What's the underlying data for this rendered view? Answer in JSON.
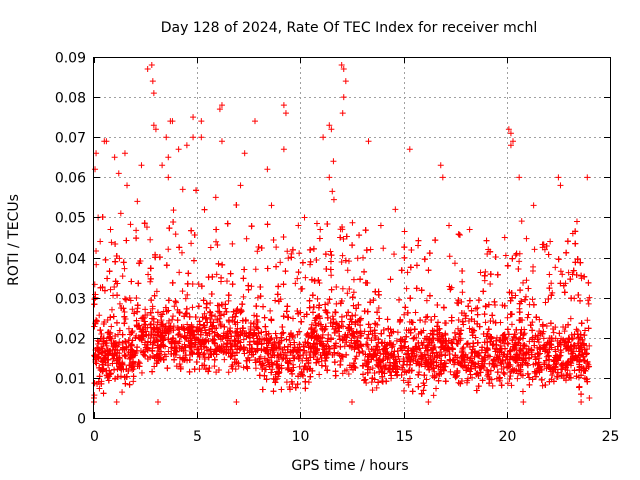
{
  "chart_data": {
    "type": "scatter",
    "title": "Day 128 of 2024, Rate Of TEC Index for receiver mchl",
    "xlabel": "GPS time / hours",
    "ylabel": "ROTI / TECUs",
    "xlim": [
      0,
      25
    ],
    "ylim": [
      0,
      0.09
    ],
    "x_ticks": [
      "0",
      "5",
      "10",
      "15",
      "20",
      "25"
    ],
    "y_ticks": [
      "0",
      "0.01",
      "0.02",
      "0.03",
      "0.04",
      "0.05",
      "0.06",
      "0.07",
      "0.08",
      "0.09"
    ],
    "grid": true,
    "marker": "plus",
    "color": "#ff0000",
    "series": [
      {
        "name": "ROTI",
        "points": [
          [
            0.05,
            0.062
          ],
          [
            0.1,
            0.066
          ],
          [
            0.2,
            0.05
          ],
          [
            0.3,
            0.044
          ],
          [
            0.5,
            0.069
          ],
          [
            0.6,
            0.069
          ],
          [
            1.0,
            0.065
          ],
          [
            1.2,
            0.061
          ],
          [
            1.5,
            0.066
          ],
          [
            1.6,
            0.058
          ],
          [
            2.3,
            0.063
          ],
          [
            2.6,
            0.087
          ],
          [
            2.8,
            0.088
          ],
          [
            2.85,
            0.084
          ],
          [
            2.9,
            0.081
          ],
          [
            2.9,
            0.073
          ],
          [
            3.0,
            0.072
          ],
          [
            3.3,
            0.063
          ],
          [
            3.5,
            0.07
          ],
          [
            3.6,
            0.065
          ],
          [
            3.6,
            0.06
          ],
          [
            3.7,
            0.074
          ],
          [
            3.8,
            0.074
          ],
          [
            4.1,
            0.067
          ],
          [
            4.5,
            0.068
          ],
          [
            4.8,
            0.07
          ],
          [
            4.8,
            0.075
          ],
          [
            5.2,
            0.07
          ],
          [
            5.2,
            0.074
          ],
          [
            6.2,
            0.069
          ],
          [
            6.1,
            0.077
          ],
          [
            6.2,
            0.078
          ],
          [
            7.8,
            0.074
          ],
          [
            7.3,
            0.066
          ],
          [
            8.4,
            0.062
          ],
          [
            9.2,
            0.078
          ],
          [
            9.3,
            0.076
          ],
          [
            9.2,
            0.067
          ],
          [
            11.1,
            0.07
          ],
          [
            11.4,
            0.073
          ],
          [
            11.5,
            0.072
          ],
          [
            11.6,
            0.064
          ],
          [
            11.4,
            0.06
          ],
          [
            12.0,
            0.088
          ],
          [
            12.1,
            0.087
          ],
          [
            12.2,
            0.084
          ],
          [
            12.1,
            0.08
          ],
          [
            12.05,
            0.076
          ],
          [
            13.3,
            0.069
          ],
          [
            15.3,
            0.067
          ],
          [
            16.8,
            0.063
          ],
          [
            16.9,
            0.06
          ],
          [
            20.1,
            0.072
          ],
          [
            20.2,
            0.071
          ],
          [
            20.3,
            0.069
          ],
          [
            20.2,
            0.068
          ],
          [
            20.6,
            0.06
          ],
          [
            22.5,
            0.06
          ],
          [
            22.6,
            0.058
          ],
          [
            23.9,
            0.06
          ],
          [
            21.3,
            0.053
          ],
          [
            23.4,
            0.049
          ],
          [
            19.9,
            0.045
          ],
          [
            18.2,
            0.047
          ],
          [
            14.6,
            0.052
          ],
          [
            13.9,
            0.048
          ],
          [
            10.2,
            0.05
          ],
          [
            9.9,
            0.048
          ],
          [
            8.6,
            0.053
          ],
          [
            7.1,
            0.058
          ],
          [
            5.9,
            0.055
          ],
          [
            4.3,
            0.057
          ],
          [
            2.1,
            0.054
          ],
          [
            1.3,
            0.051
          ],
          [
            0.8,
            0.047
          ],
          [
            17.2,
            0.048
          ],
          [
            19.1,
            0.042
          ],
          [
            22.1,
            0.044
          ],
          [
            23.2,
            0.046
          ],
          [
            24.0,
            0.03
          ],
          [
            24.0,
            0.005
          ],
          [
            0.0,
            0.005
          ],
          [
            0.0,
            0.004
          ],
          [
            1.1,
            0.004
          ],
          [
            3.1,
            0.004
          ],
          [
            6.9,
            0.004
          ],
          [
            12.5,
            0.004
          ],
          [
            16.2,
            0.004
          ],
          [
            20.8,
            0.004
          ],
          [
            23.6,
            0.004
          ]
        ]
      }
    ]
  }
}
